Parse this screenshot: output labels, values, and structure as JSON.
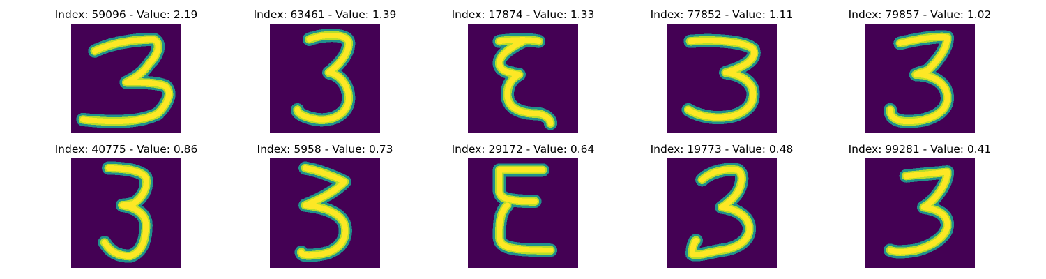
{
  "colors": {
    "background": "#440154",
    "stroke_mid": "#21918c",
    "stroke_edge": "#3b528b",
    "stroke_core": "#fde725",
    "stroke_inner": "#b5de2b"
  },
  "panels": [
    {
      "title": "Index: 59096 - Value: 2.19",
      "digit_icon": "digit-3-wide-flat-bottom-icon"
    },
    {
      "title": "Index: 63461 - Value: 1.39",
      "digit_icon": "digit-3-bold-icon"
    },
    {
      "title": "Index: 17874 - Value: 1.33",
      "digit_icon": "digit-3-narrow-epsilon-icon"
    },
    {
      "title": "Index: 77852 - Value: 1.11",
      "digit_icon": "digit-3-round-icon"
    },
    {
      "title": "Index: 79857 - Value: 1.02",
      "digit_icon": "digit-3-slanted-icon"
    },
    {
      "title": "Index: 40775 - Value: 0.86",
      "digit_icon": "digit-3-thin-tall-icon"
    },
    {
      "title": "Index: 5958 - Value: 0.73",
      "digit_icon": "digit-3-pointed-icon"
    },
    {
      "title": "Index: 29172 - Value: 0.64",
      "digit_icon": "digit-epsilon-blocky-icon"
    },
    {
      "title": "Index: 19773 - Value: 0.48",
      "digit_icon": "digit-3-open-icon"
    },
    {
      "title": "Index: 99281 - Value: 0.41",
      "digit_icon": "digit-3-flat-top-icon"
    }
  ]
}
